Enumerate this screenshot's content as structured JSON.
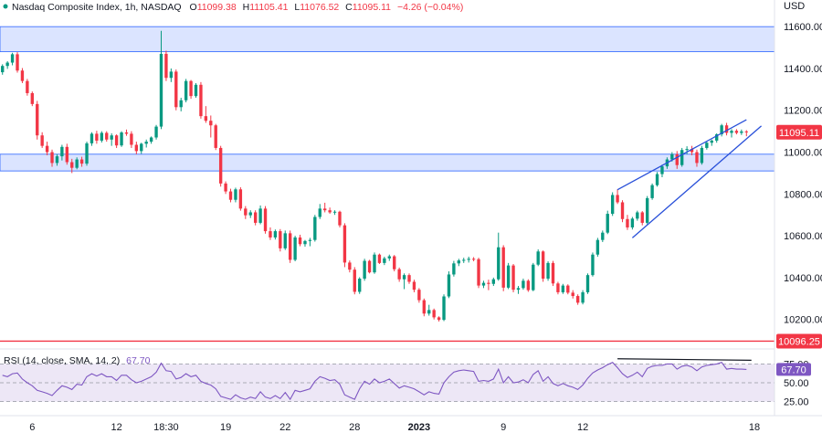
{
  "header": {
    "symbol": "Nasdaq Composite Index, 1h, NASDAQ",
    "o_label": "O",
    "o_value": "11099.38",
    "h_label": "H",
    "h_value": "11105.41",
    "l_label": "L",
    "l_value": "11076.52",
    "c_label": "C",
    "c_value": "11095.11",
    "change": "−4.26 (−0.04%)",
    "currency": "USD"
  },
  "rsi": {
    "label": "RSI (14, close, SMA, 14, 2)",
    "value": "67.70",
    "levels": [
      "75.00",
      "50.00",
      "25.00"
    ]
  },
  "price_tags": {
    "last": "11095.11",
    "line": "10096.25"
  },
  "colors": {
    "up": "#089981",
    "down": "#f23645",
    "zone_fill": "#dbe4ff",
    "zone_border": "#2962ff",
    "rsi_line": "#7e57c2",
    "rsi_bg": "#ede7f6",
    "pattern_line": "#2950d9",
    "support_line": "#f23645"
  },
  "chart_data": {
    "type": "candlestick",
    "interval": "1h",
    "ylim": [
      10120,
      11640
    ],
    "y_ticks": [
      11600,
      11400,
      11200,
      11000,
      10800,
      10600,
      10400,
      10200
    ],
    "x_tick_labels": [
      "6",
      "12",
      "18:30",
      "19",
      "22",
      "28",
      "2023",
      "9",
      "12",
      "18"
    ],
    "resistance_zone": [
      11480,
      11600
    ],
    "support_zone": [
      10910,
      10990
    ],
    "support_line": 10096.25,
    "last_price": 11095.11,
    "rising_wedge": {
      "upper": [
        [
          10820,
          11155
        ]
      ],
      "lower": [
        [
          10590,
          11125
        ]
      ]
    },
    "rsi_ylim": [
      25,
      75
    ],
    "rsi_levels": [
      75,
      50,
      25
    ],
    "rsi_last": 67.7,
    "rsi_divergence_line": [
      77,
      75
    ],
    "candles": [
      [
        11382,
        11420,
        11370,
        11412
      ],
      [
        11412,
        11435,
        11398,
        11428
      ],
      [
        11428,
        11475,
        11415,
        11468
      ],
      [
        11468,
        11478,
        11380,
        11390
      ],
      [
        11390,
        11402,
        11330,
        11340
      ],
      [
        11340,
        11350,
        11270,
        11282
      ],
      [
        11282,
        11290,
        11220,
        11230
      ],
      [
        11230,
        11245,
        11060,
        11080
      ],
      [
        11080,
        11095,
        11020,
        11030
      ],
      [
        11030,
        11050,
        10985,
        11000
      ],
      [
        11000,
        11012,
        10930,
        10948
      ],
      [
        10948,
        10990,
        10935,
        10980
      ],
      [
        10980,
        11035,
        10960,
        11025
      ],
      [
        11025,
        11040,
        10940,
        10952
      ],
      [
        10952,
        10968,
        10900,
        10925
      ],
      [
        10925,
        10975,
        10918,
        10965
      ],
      [
        10965,
        10978,
        10930,
        10945
      ],
      [
        10945,
        11050,
        10935,
        11042
      ],
      [
        11042,
        11095,
        11030,
        11088
      ],
      [
        11088,
        11102,
        11040,
        11055
      ],
      [
        11055,
        11100,
        11046,
        11092
      ],
      [
        11092,
        11100,
        11050,
        11060
      ],
      [
        11060,
        11090,
        11030,
        11080
      ],
      [
        11080,
        11085,
        11020,
        11032
      ],
      [
        11032,
        11100,
        11025,
        11094
      ],
      [
        11094,
        11108,
        11078,
        11088
      ],
      [
        11088,
        11100,
        11020,
        11035
      ],
      [
        11035,
        11050,
        10990,
        11005
      ],
      [
        11005,
        11045,
        10992,
        11040
      ],
      [
        11040,
        11060,
        11022,
        11050
      ],
      [
        11050,
        11075,
        11040,
        11070
      ],
      [
        11070,
        11130,
        11060,
        11122
      ],
      [
        11122,
        11580,
        11110,
        11470
      ],
      [
        11470,
        11485,
        11340,
        11355
      ],
      [
        11355,
        11400,
        11335,
        11385
      ],
      [
        11385,
        11395,
        11200,
        11215
      ],
      [
        11215,
        11260,
        11195,
        11248
      ],
      [
        11248,
        11350,
        11238,
        11340
      ],
      [
        11340,
        11345,
        11255,
        11268
      ],
      [
        11268,
        11330,
        11260,
        11322
      ],
      [
        11322,
        11335,
        11160,
        11172
      ],
      [
        11172,
        11220,
        11140,
        11150
      ],
      [
        11150,
        11175,
        11070,
        11128
      ],
      [
        11128,
        11135,
        11010,
        11020
      ],
      [
        11020,
        11030,
        10835,
        10850
      ],
      [
        10850,
        10860,
        10800,
        10812
      ],
      [
        10812,
        10825,
        10760,
        10772
      ],
      [
        10772,
        10830,
        10760,
        10822
      ],
      [
        10822,
        10832,
        10720,
        10730
      ],
      [
        10730,
        10742,
        10680,
        10698
      ],
      [
        10698,
        10722,
        10685,
        10712
      ],
      [
        10712,
        10722,
        10650,
        10662
      ],
      [
        10662,
        10745,
        10655,
        10730
      ],
      [
        10730,
        10742,
        10610,
        10622
      ],
      [
        10622,
        10640,
        10580,
        10592
      ],
      [
        10592,
        10630,
        10582,
        10622
      ],
      [
        10622,
        10632,
        10525,
        10540
      ],
      [
        10540,
        10625,
        10532,
        10612
      ],
      [
        10612,
        10625,
        10470,
        10485
      ],
      [
        10485,
        10600,
        10478,
        10592
      ],
      [
        10592,
        10605,
        10550,
        10560
      ],
      [
        10560,
        10580,
        10548,
        10575
      ],
      [
        10575,
        10590,
        10550,
        10580
      ],
      [
        10580,
        10700,
        10572,
        10690
      ],
      [
        10690,
        10752,
        10680,
        10730
      ],
      [
        10730,
        10758,
        10712,
        10722
      ],
      [
        10722,
        10735,
        10705,
        10712
      ],
      [
        10712,
        10722,
        10700,
        10715
      ],
      [
        10715,
        10720,
        10640,
        10650
      ],
      [
        10650,
        10660,
        10450,
        10472
      ],
      [
        10472,
        10482,
        10425,
        10438
      ],
      [
        10438,
        10450,
        10320,
        10332
      ],
      [
        10332,
        10402,
        10322,
        10395
      ],
      [
        10395,
        10490,
        10385,
        10480
      ],
      [
        10480,
        10485,
        10420,
        10425
      ],
      [
        10425,
        10520,
        10418,
        10510
      ],
      [
        10510,
        10515,
        10465,
        10470
      ],
      [
        10470,
        10500,
        10460,
        10492
      ],
      [
        10492,
        10510,
        10480,
        10502
      ],
      [
        10502,
        10508,
        10430,
        10440
      ],
      [
        10440,
        10448,
        10380,
        10392
      ],
      [
        10392,
        10420,
        10345,
        10412
      ],
      [
        10412,
        10420,
        10370,
        10380
      ],
      [
        10380,
        10390,
        10330,
        10342
      ],
      [
        10342,
        10350,
        10280,
        10292
      ],
      [
        10292,
        10300,
        10215,
        10228
      ],
      [
        10228,
        10270,
        10218,
        10245
      ],
      [
        10245,
        10252,
        10200,
        10210
      ],
      [
        10210,
        10215,
        10190,
        10198
      ],
      [
        10198,
        10320,
        10192,
        10310
      ],
      [
        10310,
        10430,
        10302,
        10415
      ],
      [
        10415,
        10480,
        10405,
        10468
      ],
      [
        10468,
        10490,
        10455,
        10482
      ],
      [
        10482,
        10495,
        10470,
        10485
      ],
      [
        10485,
        10500,
        10472,
        10490
      ],
      [
        10490,
        10498,
        10478,
        10488
      ],
      [
        10488,
        10495,
        10350,
        10362
      ],
      [
        10362,
        10385,
        10350,
        10375
      ],
      [
        10375,
        10390,
        10340,
        10370
      ],
      [
        10370,
        10400,
        10360,
        10392
      ],
      [
        10392,
        10615,
        10385,
        10545
      ],
      [
        10545,
        10555,
        10335,
        10352
      ],
      [
        10352,
        10470,
        10345,
        10458
      ],
      [
        10458,
        10465,
        10330,
        10342
      ],
      [
        10342,
        10360,
        10322,
        10350
      ],
      [
        10350,
        10395,
        10342,
        10385
      ],
      [
        10385,
        10392,
        10332,
        10340
      ],
      [
        10340,
        10470,
        10335,
        10462
      ],
      [
        10462,
        10535,
        10455,
        10525
      ],
      [
        10525,
        10530,
        10380,
        10395
      ],
      [
        10395,
        10478,
        10385,
        10470
      ],
      [
        10470,
        10480,
        10360,
        10372
      ],
      [
        10372,
        10380,
        10320,
        10330
      ],
      [
        10330,
        10370,
        10322,
        10362
      ],
      [
        10362,
        10368,
        10320,
        10328
      ],
      [
        10328,
        10340,
        10300,
        10312
      ],
      [
        10312,
        10320,
        10270,
        10280
      ],
      [
        10280,
        10340,
        10272,
        10330
      ],
      [
        10330,
        10420,
        10322,
        10412
      ],
      [
        10412,
        10520,
        10405,
        10510
      ],
      [
        10510,
        10590,
        10500,
        10580
      ],
      [
        10580,
        10625,
        10570,
        10615
      ],
      [
        10615,
        10720,
        10608,
        10705
      ],
      [
        10705,
        10808,
        10695,
        10795
      ],
      [
        10795,
        10822,
        10752,
        10760
      ],
      [
        10760,
        10770,
        10665,
        10680
      ],
      [
        10680,
        10700,
        10628,
        10640
      ],
      [
        10640,
        10690,
        10630,
        10682
      ],
      [
        10682,
        10720,
        10672,
        10712
      ],
      [
        10712,
        10718,
        10650,
        10662
      ],
      [
        10662,
        10790,
        10655,
        10780
      ],
      [
        10780,
        10850,
        10772,
        10842
      ],
      [
        10842,
        10905,
        10835,
        10895
      ],
      [
        10895,
        10940,
        10880,
        10932
      ],
      [
        10932,
        10975,
        10920,
        10965
      ],
      [
        10965,
        11000,
        10955,
        10990
      ],
      [
        10990,
        11005,
        10920,
        10938
      ],
      [
        10938,
        11020,
        10930,
        11010
      ],
      [
        11010,
        11028,
        10990,
        11015
      ],
      [
        11015,
        11030,
        10985,
        11000
      ],
      [
        11000,
        11012,
        10930,
        10948
      ],
      [
        10948,
        11030,
        10940,
        11020
      ],
      [
        11020,
        11050,
        11012,
        11045
      ],
      [
        11045,
        11060,
        11030,
        11055
      ],
      [
        11055,
        11090,
        11045,
        11085
      ],
      [
        11085,
        11135,
        11075,
        11128
      ],
      [
        11128,
        11140,
        11080,
        11092
      ],
      [
        11092,
        11110,
        11070,
        11102
      ],
      [
        11102,
        11110,
        11085,
        11092
      ],
      [
        11092,
        11108,
        11082,
        11099
      ],
      [
        11099,
        11105,
        11076,
        11095
      ]
    ],
    "rsi_values": [
      60,
      58,
      62,
      63,
      55,
      50,
      46,
      40,
      38,
      36,
      33,
      40,
      46,
      44,
      41,
      48,
      47,
      58,
      62,
      59,
      62,
      58,
      58,
      53,
      60,
      60,
      54,
      50,
      52,
      55,
      58,
      64,
      76,
      66,
      65,
      55,
      57,
      62,
      58,
      60,
      52,
      49,
      47,
      42,
      32,
      30,
      28,
      34,
      30,
      28,
      31,
      29,
      38,
      31,
      29,
      33,
      29,
      37,
      28,
      40,
      38,
      40,
      42,
      52,
      58,
      56,
      53,
      54,
      48,
      34,
      31,
      28,
      42,
      52,
      48,
      55,
      50,
      52,
      55,
      49,
      43,
      46,
      44,
      42,
      38,
      34,
      38,
      36,
      35,
      50,
      58,
      64,
      66,
      67,
      66,
      65,
      52,
      53,
      52,
      55,
      68,
      50,
      58,
      50,
      51,
      54,
      50,
      61,
      66,
      52,
      58,
      49,
      46,
      49,
      46,
      44,
      41,
      47,
      56,
      63,
      67,
      70,
      74,
      77,
      70,
      62,
      57,
      60,
      64,
      58,
      69,
      72,
      73,
      73,
      75,
      75,
      68,
      72,
      73,
      71,
      66,
      71,
      73,
      74,
      75,
      77,
      68,
      69,
      68,
      68,
      67.7
    ]
  }
}
